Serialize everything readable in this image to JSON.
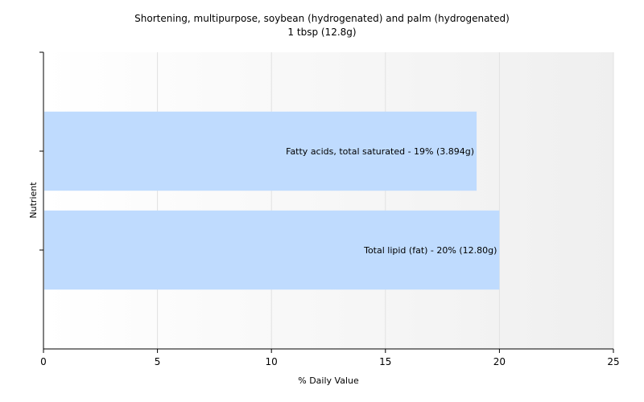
{
  "chart_data": {
    "type": "bar",
    "orientation": "horizontal",
    "title": "Shortening, multipurpose, soybean (hydrogenated) and palm (hydrogenated)",
    "subtitle": "1 tbsp (12.8g)",
    "xlabel": "% Daily Value",
    "ylabel": "Nutrient",
    "xlim": [
      0,
      25
    ],
    "xticks": [
      0,
      5,
      10,
      15,
      20,
      25
    ],
    "grid": true,
    "legend": "none",
    "bar_color": "#bfdbfe",
    "categories": [
      "Fatty acids, total saturated",
      "Total lipid (fat)"
    ],
    "values": [
      19,
      20
    ],
    "labels": [
      "Fatty acids, total saturated - 19% (3.894g)",
      "Total lipid (fat) - 20% (12.80g)"
    ]
  }
}
